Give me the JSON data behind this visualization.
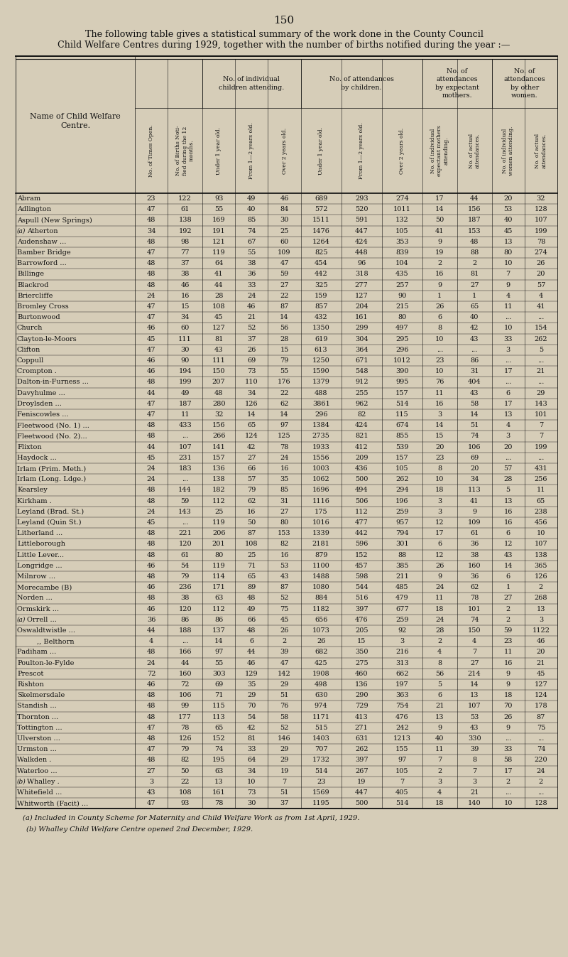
{
  "page_number": "150",
  "title_line1": "The following table gives a statistical summary of the work done in the County Council",
  "title_line2": "Child Welfare Centres during 1929, together with the number of births notified during the year :—",
  "footnote1": "(a) Included in County Scheme for Maternity and Child Welfare Work as from 1st April, 1929.",
  "footnote2": "(b) Whalley Child Welfare Centre opened 2nd December, 1929.",
  "bg_color": "#d6cdb8",
  "text_color": "#111111",
  "line_color": "#111111",
  "rows": [
    [
      "Abram",
      "...",
      "...",
      "23",
      "122",
      "93",
      "49",
      "46",
      "689",
      "293",
      "274",
      "17",
      "44",
      "20",
      "32"
    ],
    [
      "Adlington",
      "...",
      "...",
      "47",
      "61",
      "55",
      "40",
      "84",
      "572",
      "520",
      "1011",
      "14",
      "156",
      "53",
      "128"
    ],
    [
      "Aspull (New Springs)",
      "",
      "",
      "48",
      "138",
      "169",
      "85",
      "30",
      "1511",
      "591",
      "132",
      "50",
      "187",
      "40",
      "107"
    ],
    [
      "(a) Atherton",
      "...",
      "...",
      "34",
      "192",
      "191",
      "74",
      "25",
      "1476",
      "447",
      "105",
      "41",
      "153",
      "45",
      "199"
    ],
    [
      "Audenshaw ...",
      "...",
      "",
      "48",
      "98",
      "121",
      "67",
      "60",
      "1264",
      "424",
      "353",
      "9",
      "48",
      "13",
      "78"
    ],
    [
      "Bamber Bridge",
      "...",
      "",
      "47",
      "77",
      "119",
      "55",
      "109",
      "825",
      "448",
      "839",
      "19",
      "88",
      "80",
      "274"
    ],
    [
      "Barrowford ...",
      "...",
      "",
      "48",
      "37",
      "64",
      "38",
      "47",
      "454",
      "96",
      "104",
      "2",
      "2",
      "10",
      "26"
    ],
    [
      "Billinge",
      "...",
      "...",
      "48",
      "38",
      "41",
      "36",
      "59",
      "442",
      "318",
      "435",
      "16",
      "81",
      "7",
      "20"
    ],
    [
      "Blackrod",
      "...",
      "...",
      "48",
      "46",
      "44",
      "33",
      "27",
      "325",
      "277",
      "257",
      "9",
      "27",
      "9",
      "57"
    ],
    [
      "Briercliffe",
      "...",
      "...",
      "24",
      "16",
      "28",
      "24",
      "22",
      "159",
      "127",
      "90",
      "1",
      "1",
      "4",
      "4"
    ],
    [
      "Bromley Cross",
      "...",
      "",
      "47",
      "15",
      "108",
      "46",
      "87",
      "857",
      "204",
      "215",
      "26",
      "65",
      "11",
      "41"
    ],
    [
      "Burtonwood",
      "...",
      "",
      "47",
      "34",
      "45",
      "21",
      "14",
      "432",
      "161",
      "80",
      "6",
      "40",
      "...",
      "..."
    ],
    [
      "Church",
      "...",
      "...",
      "46",
      "60",
      "127",
      "52",
      "56",
      "1350",
      "299",
      "497",
      "8",
      "42",
      "10",
      "154"
    ],
    [
      "Clayton-le-Moors",
      "...",
      "",
      "45",
      "111",
      "81",
      "37",
      "28",
      "619",
      "304",
      "295",
      "10",
      "43",
      "33",
      "262"
    ],
    [
      "Clifton",
      "...",
      "...",
      "47",
      "30",
      "43",
      "26",
      "15",
      "613",
      "364",
      "296",
      "...",
      "...",
      "3",
      "5"
    ],
    [
      "Coppull",
      "...",
      "...",
      "46",
      "90",
      "111",
      "69",
      "79",
      "1250",
      "671",
      "1012",
      "23",
      "86",
      "...",
      "..."
    ],
    [
      "Crompton .",
      "...",
      "",
      "46",
      "194",
      "150",
      "73",
      "55",
      "1590",
      "548",
      "390",
      "10",
      "31",
      "17",
      "21"
    ],
    [
      "Dalton-in-Furness ...",
      "",
      "",
      "48",
      "199",
      "207",
      "110",
      "176",
      "1379",
      "912",
      "995",
      "76",
      "404",
      "...",
      "..."
    ],
    [
      "Davyhulme ...",
      "...",
      "",
      "44",
      "49",
      "48",
      "34",
      "22",
      "488",
      "255",
      "157",
      "11",
      "43",
      "6",
      "29"
    ],
    [
      "Droylsden ...",
      "...",
      "",
      "47",
      "187",
      "280",
      "126",
      "62",
      "3861",
      "962",
      "514",
      "16",
      "58",
      "17",
      "143"
    ],
    [
      "Feniscowles ...",
      "...",
      "",
      "47",
      "11",
      "32",
      "14",
      "14",
      "296",
      "82",
      "115",
      "3",
      "14",
      "13",
      "101"
    ],
    [
      "Fleetwood (No. 1) ...",
      "",
      "",
      "48",
      "433",
      "156",
      "65",
      "97",
      "1384",
      "424",
      "674",
      "14",
      "51",
      "4",
      "7"
    ],
    [
      "Fleetwood (No. 2)...",
      "",
      "",
      "48",
      "...",
      "266",
      "124",
      "125",
      "2735",
      "821",
      "855",
      "15",
      "74",
      "3",
      "7"
    ],
    [
      "Flixton",
      "...",
      "...",
      "44",
      "107",
      "141",
      "42",
      "78",
      "1933",
      "412",
      "539",
      "20",
      "106",
      "20",
      "199"
    ],
    [
      "Haydock ...",
      "...",
      "",
      "45",
      "231",
      "157",
      "27",
      "24",
      "1556",
      "209",
      "157",
      "23",
      "69",
      "...",
      "..."
    ],
    [
      "Irlam (Prim. Meth.)",
      "",
      "",
      "24",
      "183",
      "136",
      "66",
      "16",
      "1003",
      "436",
      "105",
      "8",
      "20",
      "57",
      "431"
    ],
    [
      "Irlam (Long. Ldge.)",
      "",
      "",
      "24",
      "...",
      "138",
      "57",
      "35",
      "1062",
      "500",
      "262",
      "10",
      "34",
      "28",
      "256"
    ],
    [
      "Kearsley",
      "...",
      "...",
      "48",
      "144",
      "182",
      "79",
      "85",
      "1696",
      "494",
      "294",
      "18",
      "113",
      "5",
      "11"
    ],
    [
      "Kirkham .",
      "...",
      "...",
      "48",
      "59",
      "112",
      "62",
      "31",
      "1116",
      "506",
      "196",
      "3",
      "41",
      "13",
      "65"
    ],
    [
      "Leyland (Brad. St.)",
      "",
      "",
      "24",
      "143",
      "25",
      "16",
      "27",
      "175",
      "112",
      "259",
      "3",
      "9",
      "16",
      "238"
    ],
    [
      "Leyland (Quin St.)",
      "",
      "",
      "45",
      "...",
      "119",
      "50",
      "80",
      "1016",
      "477",
      "957",
      "12",
      "109",
      "16",
      "456"
    ],
    [
      "Litherland ...",
      "...",
      "",
      "48",
      "221",
      "206",
      "87",
      "153",
      "1339",
      "442",
      "794",
      "17",
      "61",
      "6",
      "10"
    ],
    [
      "Littleborough",
      "...",
      "",
      "48",
      "120",
      "201",
      "108",
      "82",
      "2181",
      "596",
      "301",
      "6",
      "36",
      "12",
      "107"
    ],
    [
      "Little Lever...",
      "...",
      "",
      "48",
      "61",
      "80",
      "25",
      "16",
      "879",
      "152",
      "88",
      "12",
      "38",
      "43",
      "138"
    ],
    [
      "Longridge ...",
      "...",
      "",
      "46",
      "54",
      "119",
      "71",
      "53",
      "1100",
      "457",
      "385",
      "26",
      "160",
      "14",
      "365"
    ],
    [
      "Milnrow ...",
      "...",
      "",
      "48",
      "79",
      "114",
      "65",
      "43",
      "1488",
      "598",
      "211",
      "9",
      "36",
      "6",
      "126"
    ],
    [
      "Morecambe (B)",
      "...",
      "",
      "46",
      "236",
      "171",
      "89",
      "87",
      "1080",
      "544",
      "485",
      "24",
      "62",
      "1",
      "2"
    ],
    [
      "Norden ...",
      "...",
      "",
      "48",
      "38",
      "63",
      "48",
      "52",
      "884",
      "516",
      "479",
      "11",
      "78",
      "27",
      "268"
    ],
    [
      "Ormskirk ...",
      "...",
      "",
      "46",
      "120",
      "112",
      "49",
      "75",
      "1182",
      "397",
      "677",
      "18",
      "101",
      "2",
      "13"
    ],
    [
      "(a) Orrell ...",
      "...",
      "",
      "36",
      "86",
      "86",
      "66",
      "45",
      "656",
      "476",
      "259",
      "24",
      "74",
      "2",
      "3"
    ],
    [
      "Oswaldtwistle ...",
      "...",
      "",
      "44",
      "188",
      "137",
      "48",
      "26",
      "1073",
      "205",
      "92",
      "28",
      "150",
      "59",
      "1122"
    ],
    [
      ",, Belthorn",
      "",
      "",
      "4",
      "...",
      "14",
      "6",
      "2",
      "26",
      "15",
      "3",
      "2",
      "4",
      "23",
      "46"
    ],
    [
      "Padiham ...",
      "...",
      "",
      "48",
      "166",
      "97",
      "44",
      "39",
      "682",
      "350",
      "216",
      "4",
      "7",
      "11",
      "20"
    ],
    [
      "Poulton-le-Fylde",
      "",
      "",
      "24",
      "44",
      "55",
      "46",
      "47",
      "425",
      "275",
      "313",
      "8",
      "27",
      "16",
      "21"
    ],
    [
      "Prescot",
      "",
      "",
      "72",
      "160",
      "303",
      "129",
      "142",
      "1908",
      "460",
      "662",
      "56",
      "214",
      "9",
      "45"
    ],
    [
      "Rishton",
      "",
      "",
      "46",
      "72",
      "69",
      "35",
      "29",
      "498",
      "136",
      "197",
      "5",
      "14",
      "9",
      "127"
    ],
    [
      "Skelmersdale",
      "",
      "",
      "48",
      "106",
      "71",
      "29",
      "51",
      "630",
      "290",
      "363",
      "6",
      "13",
      "18",
      "124"
    ],
    [
      "Standish ...",
      "...",
      "",
      "48",
      "99",
      "115",
      "70",
      "76",
      "974",
      "729",
      "754",
      "21",
      "107",
      "70",
      "178"
    ],
    [
      "Thornton ...",
      "...",
      "",
      "48",
      "177",
      "113",
      "54",
      "58",
      "1171",
      "413",
      "476",
      "13",
      "53",
      "26",
      "87"
    ],
    [
      "Tottington ...",
      "...",
      "",
      "47",
      "78",
      "65",
      "42",
      "52",
      "515",
      "271",
      "242",
      "9",
      "43",
      "9",
      "75"
    ],
    [
      "Ulverston ...",
      "...",
      "",
      "48",
      "126",
      "152",
      "81",
      "146",
      "1403",
      "631",
      "1213",
      "40",
      "330",
      "...",
      "..."
    ],
    [
      "Urmston ...",
      "...",
      "",
      "47",
      "79",
      "74",
      "33",
      "29",
      "707",
      "262",
      "155",
      "11",
      "39",
      "33",
      "74"
    ],
    [
      "Walkden .",
      "...",
      "",
      "48",
      "82",
      "195",
      "64",
      "29",
      "1732",
      "397",
      "97",
      "7",
      "8",
      "58",
      "220"
    ],
    [
      "Waterloo ...",
      "...",
      "",
      "27",
      "50",
      "63",
      "34",
      "19",
      "514",
      "267",
      "105",
      "2",
      "7",
      "17",
      "24"
    ],
    [
      "(b) Whalley .",
      "...",
      "",
      "3",
      "22",
      "13",
      "10",
      "7",
      "23",
      "19",
      "7",
      "3",
      "3",
      "2",
      "2"
    ],
    [
      "Whitefield ...",
      "...",
      "",
      "43",
      "108",
      "161",
      "73",
      "51",
      "1569",
      "447",
      "405",
      "4",
      "21",
      "...",
      "..."
    ],
    [
      "Whitworth (Facit) ...",
      "",
      "",
      "47",
      "93",
      "78",
      "30",
      "37",
      "1195",
      "500",
      "514",
      "18",
      "140",
      "10",
      "128"
    ]
  ]
}
